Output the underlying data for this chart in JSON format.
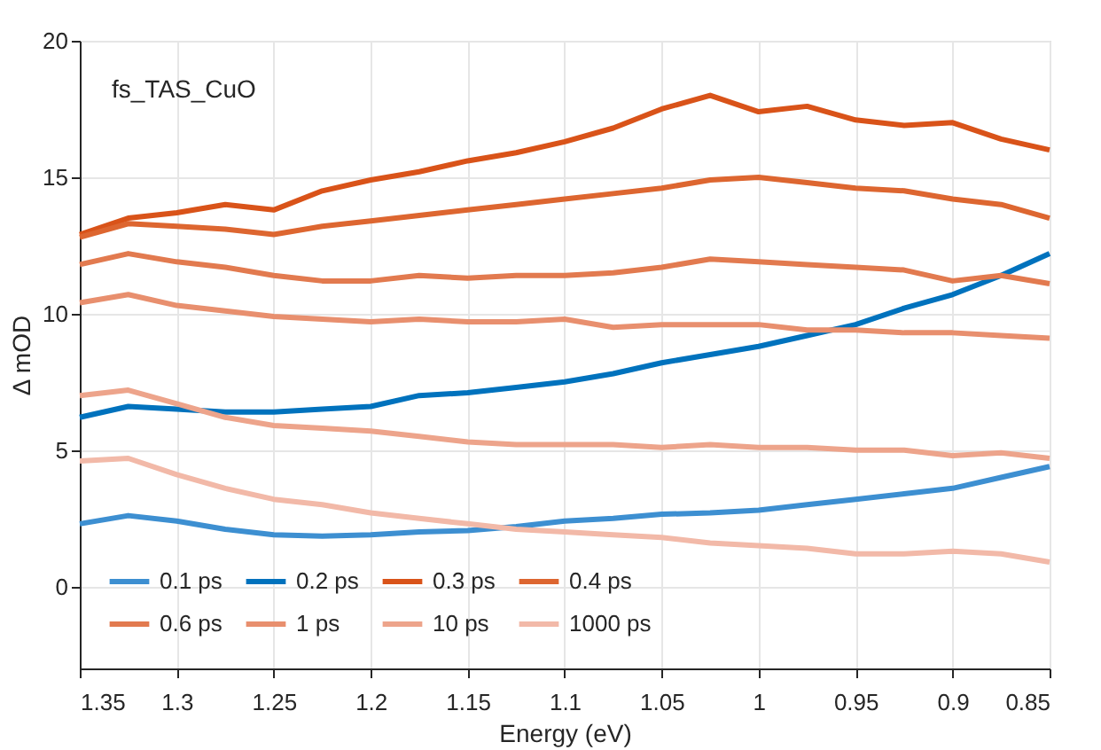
{
  "chart_data": {
    "type": "line",
    "xlabel": "Energy (eV)",
    "ylabel": "Δ mOD",
    "annotations": [
      "fs_TAS_CuO"
    ],
    "x": [
      1.35,
      1.325,
      1.3,
      1.275,
      1.25,
      1.225,
      1.2,
      1.175,
      1.15,
      1.125,
      1.1,
      1.075,
      1.05,
      1.025,
      1.0,
      0.975,
      0.95,
      0.925,
      0.9,
      0.875,
      0.85
    ],
    "xlim": [
      1.35,
      0.85
    ],
    "xticks": [
      1.35,
      1.3,
      1.25,
      1.2,
      1.15,
      1.1,
      1.05,
      1,
      0.95,
      0.9,
      0.85
    ],
    "ylim": [
      -3,
      20
    ],
    "yticks": [
      0,
      5,
      10,
      15,
      20
    ],
    "grid": true,
    "legend": "bottom",
    "line_style": "solid",
    "marker": "none",
    "series": [
      {
        "name": "0.1 ps",
        "color": "#3d8fd1",
        "values": [
          2.3,
          2.6,
          2.4,
          2.1,
          1.9,
          1.85,
          1.9,
          2.0,
          2.05,
          2.2,
          2.4,
          2.5,
          2.65,
          2.7,
          2.8,
          3.0,
          3.2,
          3.4,
          3.6,
          4.0,
          4.4
        ]
      },
      {
        "name": "0.2 ps",
        "color": "#0072bd",
        "values": [
          6.2,
          6.6,
          6.5,
          6.4,
          6.4,
          6.5,
          6.6,
          7.0,
          7.1,
          7.3,
          7.5,
          7.8,
          8.2,
          8.5,
          8.8,
          9.2,
          9.6,
          10.2,
          10.7,
          11.4,
          12.2
        ]
      },
      {
        "name": "0.3 ps",
        "color": "#d95319",
        "values": [
          12.9,
          13.5,
          13.7,
          14.0,
          13.8,
          14.5,
          14.9,
          15.2,
          15.6,
          15.9,
          16.3,
          16.8,
          17.5,
          18.0,
          17.4,
          17.6,
          17.1,
          16.9,
          17.0,
          16.4,
          16.0
        ]
      },
      {
        "name": "0.4 ps",
        "color": "#dd6630",
        "values": [
          12.8,
          13.3,
          13.2,
          13.1,
          12.9,
          13.2,
          13.4,
          13.6,
          13.8,
          14.0,
          14.2,
          14.4,
          14.6,
          14.9,
          15.0,
          14.8,
          14.6,
          14.5,
          14.2,
          14.0,
          13.5
        ]
      },
      {
        "name": "0.6 ps",
        "color": "#e27a4f",
        "values": [
          11.8,
          12.2,
          11.9,
          11.7,
          11.4,
          11.2,
          11.2,
          11.4,
          11.3,
          11.4,
          11.4,
          11.5,
          11.7,
          12.0,
          11.9,
          11.8,
          11.7,
          11.6,
          11.2,
          11.4,
          11.1
        ]
      },
      {
        "name": "1 ps",
        "color": "#e88f6e",
        "values": [
          10.4,
          10.7,
          10.3,
          10.1,
          9.9,
          9.8,
          9.7,
          9.8,
          9.7,
          9.7,
          9.8,
          9.5,
          9.6,
          9.6,
          9.6,
          9.4,
          9.4,
          9.3,
          9.3,
          9.2,
          9.1
        ]
      },
      {
        "name": "10 ps",
        "color": "#eda48b",
        "values": [
          7.0,
          7.2,
          6.7,
          6.2,
          5.9,
          5.8,
          5.7,
          5.5,
          5.3,
          5.2,
          5.2,
          5.2,
          5.1,
          5.2,
          5.1,
          5.1,
          5.0,
          5.0,
          4.8,
          4.9,
          4.7
        ]
      },
      {
        "name": "1000 ps",
        "color": "#f2b9a8",
        "values": [
          4.6,
          4.7,
          4.1,
          3.6,
          3.2,
          3.0,
          2.7,
          2.5,
          2.3,
          2.1,
          2.0,
          1.9,
          1.8,
          1.6,
          1.5,
          1.4,
          1.2,
          1.2,
          1.3,
          1.2,
          0.9
        ]
      }
    ]
  }
}
